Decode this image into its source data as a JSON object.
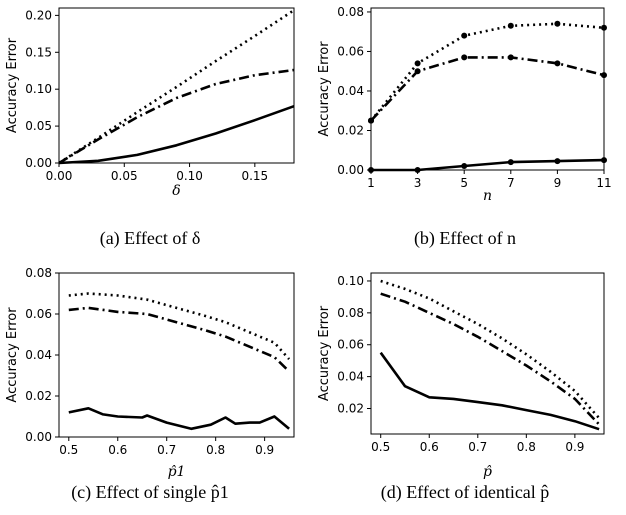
{
  "chart_data": [
    {
      "type": "line",
      "caption": "(a) Effect of δ",
      "xlabel": "δ",
      "ylabel": "Accuracy Error",
      "xlim": [
        0,
        0.18
      ],
      "ylim": [
        0,
        0.21
      ],
      "xticks": [
        0.0,
        0.05,
        0.1,
        0.15
      ],
      "xtick_labels": [
        "0.00",
        "0.05",
        "0.10",
        "0.15"
      ],
      "yticks": [
        0.0,
        0.05,
        0.1,
        0.15,
        0.2
      ],
      "ytick_labels": [
        "0.00",
        "0.05",
        "0.10",
        "0.15",
        "0.20"
      ],
      "series": [
        {
          "style": "dotted",
          "x": [
            0,
            0.03,
            0.06,
            0.09,
            0.12,
            0.15,
            0.18
          ],
          "y": [
            0,
            0.034,
            0.069,
            0.103,
            0.138,
            0.172,
            0.207
          ]
        },
        {
          "style": "dashdot",
          "x": [
            0,
            0.03,
            0.06,
            0.09,
            0.12,
            0.15,
            0.18
          ],
          "y": [
            0,
            0.032,
            0.062,
            0.088,
            0.107,
            0.119,
            0.126
          ]
        },
        {
          "style": "solid",
          "x": [
            0,
            0.03,
            0.06,
            0.09,
            0.12,
            0.15,
            0.18
          ],
          "y": [
            0,
            0.003,
            0.011,
            0.024,
            0.04,
            0.058,
            0.077
          ]
        }
      ]
    },
    {
      "type": "line",
      "caption": "(b) Effect of n",
      "xlabel": "n",
      "ylabel": "Accuracy Error",
      "xlim": [
        1,
        11
      ],
      "ylim": [
        0,
        0.082
      ],
      "xticks": [
        1,
        3,
        5,
        7,
        9,
        11
      ],
      "xtick_labels": [
        "1",
        "3",
        "5",
        "7",
        "9",
        "11"
      ],
      "yticks": [
        0.0,
        0.02,
        0.04,
        0.06,
        0.08
      ],
      "ytick_labels": [
        "0.00",
        "0.02",
        "0.04",
        "0.06",
        "0.08"
      ],
      "markers": true,
      "series": [
        {
          "style": "dotted",
          "x": [
            1,
            3,
            5,
            7,
            9,
            11
          ],
          "y": [
            0.025,
            0.054,
            0.068,
            0.073,
            0.074,
            0.072
          ]
        },
        {
          "style": "dashdot",
          "x": [
            1,
            3,
            5,
            7,
            9,
            11
          ],
          "y": [
            0.025,
            0.05,
            0.057,
            0.057,
            0.054,
            0.048
          ]
        },
        {
          "style": "solid",
          "x": [
            1,
            3,
            5,
            7,
            9,
            11
          ],
          "y": [
            0.0,
            0.0,
            0.002,
            0.004,
            0.0045,
            0.005
          ]
        }
      ]
    },
    {
      "type": "line",
      "caption": "(c) Effect of single p̂1",
      "xlabel": "p̂1",
      "ylabel": "Accuracy Error",
      "xlim": [
        0.48,
        0.96
      ],
      "ylim": [
        0,
        0.08
      ],
      "xticks": [
        0.5,
        0.6,
        0.7,
        0.8,
        0.9
      ],
      "xtick_labels": [
        "0.5",
        "0.6",
        "0.7",
        "0.8",
        "0.9"
      ],
      "yticks": [
        0.0,
        0.02,
        0.04,
        0.06,
        0.08
      ],
      "ytick_labels": [
        "0.00",
        "0.02",
        "0.04",
        "0.06",
        "0.08"
      ],
      "series": [
        {
          "style": "dotted",
          "x": [
            0.5,
            0.54,
            0.6,
            0.66,
            0.72,
            0.78,
            0.82,
            0.88,
            0.92,
            0.95
          ],
          "y": [
            0.069,
            0.07,
            0.069,
            0.067,
            0.063,
            0.059,
            0.056,
            0.05,
            0.046,
            0.038
          ]
        },
        {
          "style": "dashdot",
          "x": [
            0.5,
            0.54,
            0.6,
            0.66,
            0.72,
            0.78,
            0.82,
            0.88,
            0.92,
            0.95
          ],
          "y": [
            0.062,
            0.063,
            0.061,
            0.06,
            0.056,
            0.052,
            0.049,
            0.043,
            0.039,
            0.032
          ]
        },
        {
          "style": "solid",
          "x": [
            0.5,
            0.54,
            0.57,
            0.6,
            0.65,
            0.66,
            0.7,
            0.75,
            0.79,
            0.82,
            0.84,
            0.87,
            0.89,
            0.92,
            0.95
          ],
          "y": [
            0.012,
            0.014,
            0.011,
            0.01,
            0.0095,
            0.0105,
            0.007,
            0.004,
            0.006,
            0.0095,
            0.0065,
            0.007,
            0.007,
            0.01,
            0.004
          ]
        }
      ]
    },
    {
      "type": "line",
      "caption": "(d) Effect of identical p̂",
      "xlabel": "p̂",
      "ylabel": "Accuracy Error",
      "xlim": [
        0.48,
        0.96
      ],
      "ylim": [
        0.004,
        0.105
      ],
      "xticks": [
        0.5,
        0.6,
        0.7,
        0.8,
        0.9
      ],
      "xtick_labels": [
        "0.5",
        "0.6",
        "0.7",
        "0.8",
        "0.9"
      ],
      "yticks": [
        0.02,
        0.04,
        0.06,
        0.08,
        0.1
      ],
      "ytick_labels": [
        "0.02",
        "0.04",
        "0.06",
        "0.08",
        "0.10"
      ],
      "series": [
        {
          "style": "dotted",
          "x": [
            0.5,
            0.55,
            0.6,
            0.65,
            0.7,
            0.75,
            0.8,
            0.85,
            0.9,
            0.95
          ],
          "y": [
            0.1,
            0.095,
            0.089,
            0.081,
            0.073,
            0.064,
            0.054,
            0.043,
            0.031,
            0.014
          ]
        },
        {
          "style": "dashdot",
          "x": [
            0.5,
            0.55,
            0.6,
            0.65,
            0.7,
            0.75,
            0.8,
            0.85,
            0.9,
            0.95
          ],
          "y": [
            0.092,
            0.087,
            0.08,
            0.073,
            0.065,
            0.056,
            0.047,
            0.037,
            0.026,
            0.01
          ]
        },
        {
          "style": "solid",
          "x": [
            0.5,
            0.55,
            0.6,
            0.65,
            0.7,
            0.75,
            0.8,
            0.85,
            0.9,
            0.95
          ],
          "y": [
            0.055,
            0.034,
            0.027,
            0.026,
            0.024,
            0.022,
            0.019,
            0.016,
            0.012,
            0.007
          ]
        }
      ]
    }
  ]
}
